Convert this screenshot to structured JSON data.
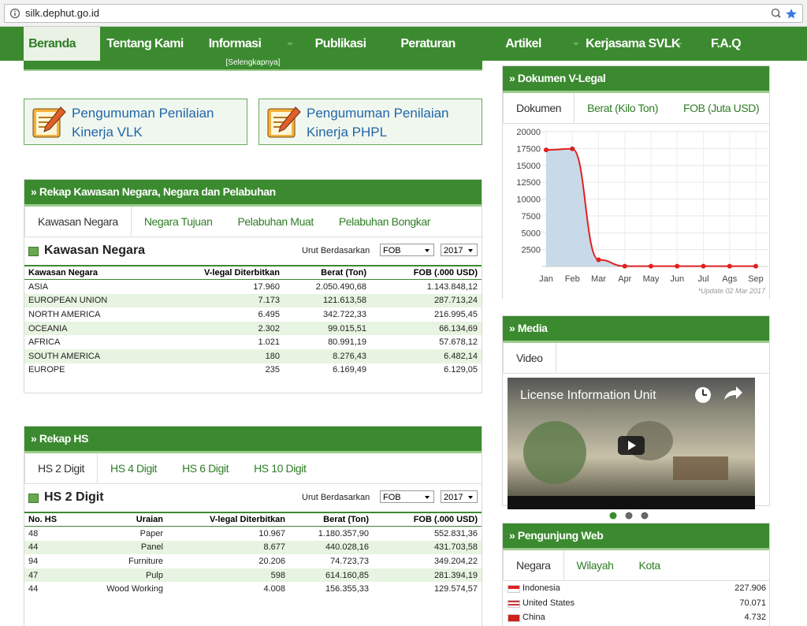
{
  "browser": {
    "url": "silk.dephut.go.id"
  },
  "nav": {
    "items": [
      "Beranda",
      "Tentang Kami",
      "Informasi",
      "Publikasi",
      "Peraturan",
      "Artikel",
      "Kerjasama SVLK",
      "F.A.Q"
    ]
  },
  "top_link": "[Selengkapnya]",
  "announcements": [
    "Pengumuman Penilaian Kinerja VLK",
    "Pengumuman Penilaian Kinerja PHPL"
  ],
  "rekap_kawasan": {
    "title": "Rekap Kawasan Negara, Negara dan Pelabuhan",
    "tabs": [
      "Kawasan Negara",
      "Negara Tujuan",
      "Pelabuhan Muat",
      "Pelabuhan Bongkar"
    ],
    "subtitle": "Kawasan Negara",
    "sort_label": "Urut Berdasarkan",
    "sort_value": "FOB",
    "year": "2017",
    "headers": [
      "Kawasan Negara",
      "V-legal Diterbitkan",
      "Berat (Ton)",
      "FOB (.000 USD)"
    ],
    "rows": [
      [
        "ASIA",
        "17.960",
        "2.050.490,68",
        "1.143.848,12"
      ],
      [
        "EUROPEAN UNION",
        "7.173",
        "121.613,58",
        "287.713,24"
      ],
      [
        "NORTH AMERICA",
        "6.495",
        "342.722,33",
        "216.995,45"
      ],
      [
        "OCEANIA",
        "2.302",
        "99.015,51",
        "66.134,69"
      ],
      [
        "AFRICA",
        "1.021",
        "80.991,19",
        "57.678,12"
      ],
      [
        "SOUTH AMERICA",
        "180",
        "8.276,43",
        "6.482,14"
      ],
      [
        "EUROPE",
        "235",
        "6.169,49",
        "6.129,05"
      ]
    ]
  },
  "rekap_hs": {
    "title": "Rekap HS",
    "tabs": [
      "HS 2 Digit",
      "HS 4 Digit",
      "HS 6 Digit",
      "HS 10 Digit"
    ],
    "subtitle": "HS 2 Digit",
    "sort_label": "Urut Berdasarkan",
    "sort_value": "FOB",
    "year": "2017",
    "headers": [
      "No. HS",
      "Uraian",
      "V-legal Diterbitkan",
      "Berat (Ton)",
      "FOB (.000 USD)"
    ],
    "rows": [
      [
        "48",
        "Paper",
        "10.967",
        "1.180.357,90",
        "552.831,36"
      ],
      [
        "44",
        "Panel",
        "8.677",
        "440.028,16",
        "431.703,58"
      ],
      [
        "94",
        "Furniture",
        "20.206",
        "74.723,73",
        "349.204,22"
      ],
      [
        "47",
        "Pulp",
        "598",
        "614.160,85",
        "281.394,19"
      ],
      [
        "44",
        "Wood Working",
        "4.008",
        "156.355,33",
        "129.574,57"
      ]
    ]
  },
  "dokumen": {
    "title": "Dokumen V-Legal",
    "tabs": [
      "Dokumen",
      "Berat (Kilo Ton)",
      "FOB (Juta USD)"
    ],
    "chart": {
      "type": "line",
      "categories": [
        "Jan",
        "Feb",
        "Mar",
        "Apr",
        "May",
        "Jun",
        "Jul",
        "Ags",
        "Sep"
      ],
      "values": [
        17300,
        17450,
        1000,
        50,
        50,
        50,
        50,
        50,
        50
      ],
      "color": "#e02020",
      "area_color": "#c8dae8",
      "ylim": [
        0,
        20000
      ],
      "yticks": [
        2500,
        5000,
        7500,
        10000,
        12500,
        15000,
        17500,
        20000
      ],
      "grid": true
    },
    "note": "*Update 02 Mar 2017"
  },
  "media": {
    "title": "Media",
    "tabs": [
      "Video"
    ],
    "video_title": "License Information Unit"
  },
  "pengunjung": {
    "title": "Pengunjung Web",
    "tabs": [
      "Negara",
      "Wilayah",
      "Kota"
    ],
    "rows": [
      [
        "Indonesia",
        "227.906"
      ],
      [
        "United States",
        "70.071"
      ],
      [
        "China",
        "4.732"
      ]
    ]
  }
}
